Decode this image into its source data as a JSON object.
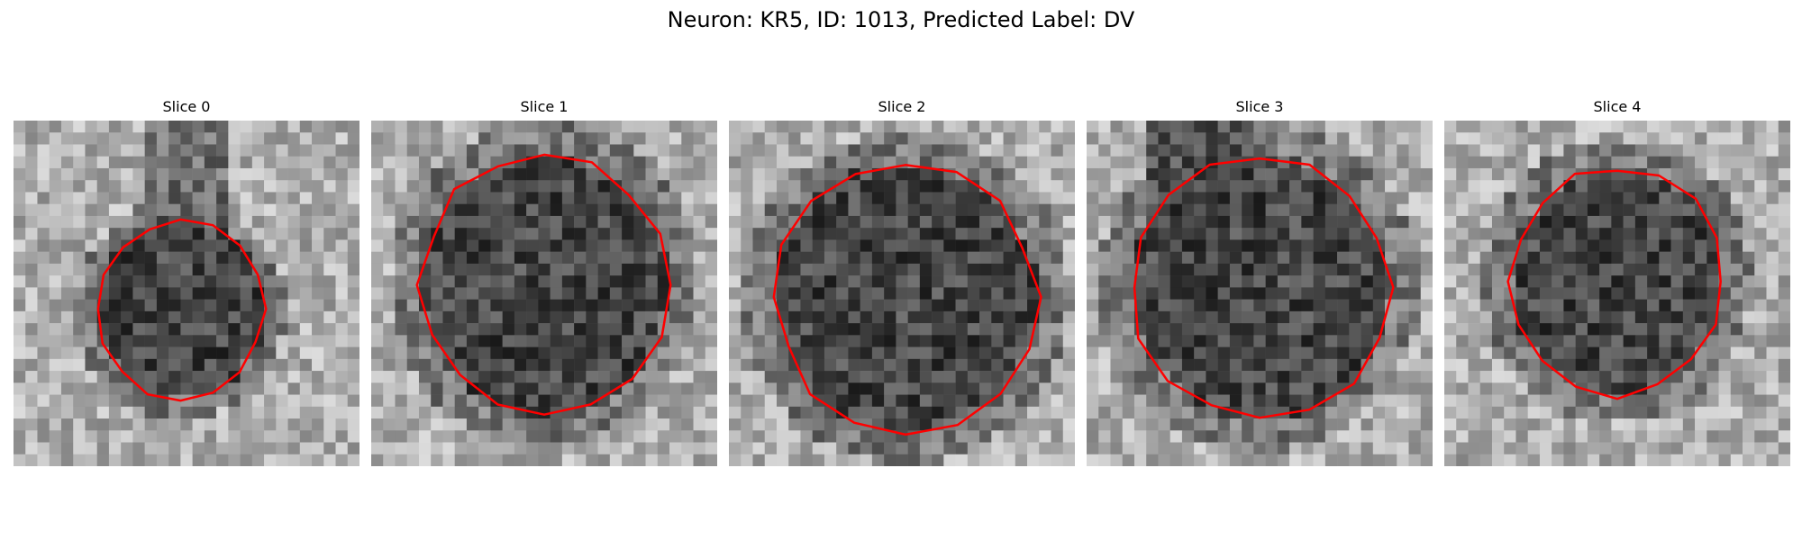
{
  "figure": {
    "title": "Neuron: KR5, ID: 1013, Predicted Label: DV"
  },
  "panels": [
    {
      "title": "Slice 0"
    },
    {
      "title": "Slice 1"
    },
    {
      "title": "Slice 2"
    },
    {
      "title": "Slice 3"
    },
    {
      "title": "Slice 4"
    }
  ],
  "style": {
    "contour_color": "#ff0000"
  }
}
